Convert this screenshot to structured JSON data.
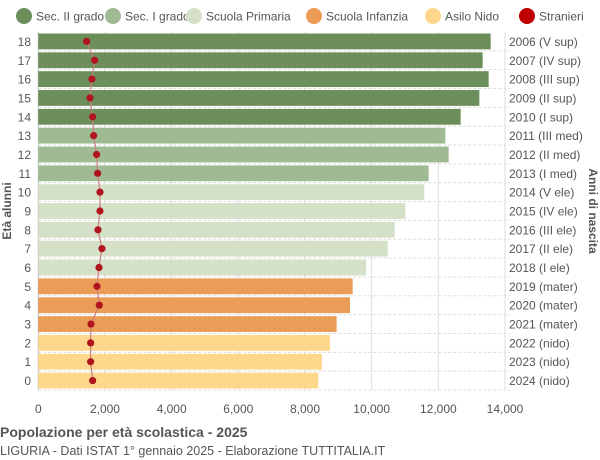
{
  "title": "Popolazione per età scolastica - 2025",
  "subtitle": "LIGURIA - Dati ISTAT 1° gennaio 2025 - Elaborazione TUTTITALIA.IT",
  "chart_data": {
    "type": "bar",
    "orientation": "horizontal",
    "ylabel": "Età alunni",
    "ylabel_right": "Anni di nascita",
    "xlim": [
      0,
      14000
    ],
    "xticks": [
      0,
      2000,
      4000,
      6000,
      8000,
      10000,
      12000,
      14000
    ],
    "xtick_labels": [
      "0",
      "2,000",
      "4,000",
      "6,000",
      "8,000",
      "10,000",
      "12,000",
      "14,000"
    ],
    "grid": true,
    "legend_position": "top",
    "legend": [
      {
        "name": "Sec. II grado",
        "color": "#6b8e5a"
      },
      {
        "name": "Sec. I grado",
        "color": "#a0bb93"
      },
      {
        "name": "Scuola Primaria",
        "color": "#d5e0c8"
      },
      {
        "name": "Scuola Infanzia",
        "color": "#eb9d57"
      },
      {
        "name": "Asilo Nido",
        "color": "#fdd88c"
      },
      {
        "name": "Stranieri",
        "color": "#c00000"
      }
    ],
    "ages": [
      18,
      17,
      16,
      15,
      14,
      13,
      12,
      11,
      10,
      9,
      8,
      7,
      6,
      5,
      4,
      3,
      2,
      1,
      0
    ],
    "birth_years": [
      "2006 (V sup)",
      "2007 (IV sup)",
      "2008 (III sup)",
      "2009 (II sup)",
      "2010 (I sup)",
      "2011 (III med)",
      "2012 (II med)",
      "2013 (I med)",
      "2014 (V ele)",
      "2015 (IV ele)",
      "2016 (III ele)",
      "2017 (II ele)",
      "2018 (I ele)",
      "2019 (mater)",
      "2020 (mater)",
      "2021 (mater)",
      "2022 (nido)",
      "2023 (nido)",
      "2024 (nido)"
    ],
    "groups": [
      0,
      0,
      0,
      0,
      0,
      1,
      1,
      1,
      2,
      2,
      2,
      2,
      2,
      3,
      3,
      3,
      4,
      4,
      4
    ],
    "values": [
      13570,
      13330,
      13510,
      13230,
      12670,
      12210,
      12310,
      11710,
      11580,
      11010,
      10690,
      10480,
      9830,
      9430,
      9350,
      8950,
      8750,
      8510,
      8400
    ],
    "stranieri": [
      1450,
      1690,
      1610,
      1550,
      1630,
      1660,
      1750,
      1780,
      1850,
      1850,
      1790,
      1910,
      1820,
      1760,
      1830,
      1580,
      1570,
      1570,
      1630
    ],
    "stranieri_line_color": "#c98080"
  }
}
